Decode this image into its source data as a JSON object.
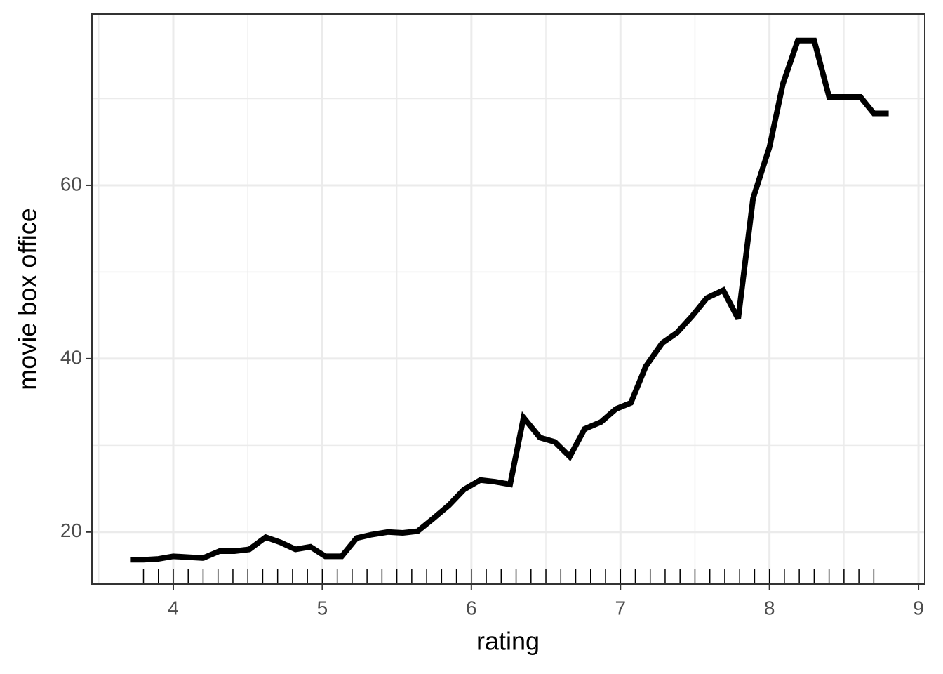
{
  "chart_data": {
    "type": "line",
    "x_label": "rating",
    "y_label": "movie box office",
    "x": [
      3.71,
      3.8,
      3.9,
      4.0,
      4.1,
      4.2,
      4.31,
      4.41,
      4.51,
      4.62,
      4.72,
      4.82,
      4.92,
      5.02,
      5.13,
      5.23,
      5.33,
      5.44,
      5.54,
      5.64,
      5.74,
      5.85,
      5.95,
      6.06,
      6.16,
      6.26,
      6.35,
      6.46,
      6.56,
      6.66,
      6.76,
      6.87,
      6.97,
      7.07,
      7.17,
      7.28,
      7.38,
      7.48,
      7.58,
      7.69,
      7.79,
      7.89,
      8.0,
      8.09,
      8.19,
      8.3,
      8.4,
      8.51,
      8.61,
      8.7,
      8.8
    ],
    "series": [
      {
        "color": "#000000",
        "values": [
          16.8,
          16.8,
          16.9,
          17.2,
          17.1,
          17.0,
          17.8,
          17.8,
          18.0,
          19.4,
          18.8,
          18.0,
          18.3,
          17.2,
          17.2,
          19.3,
          19.7,
          20.0,
          19.9,
          20.1,
          21.5,
          23.1,
          24.9,
          26.0,
          25.8,
          25.5,
          33.2,
          30.9,
          30.4,
          28.7,
          31.9,
          32.7,
          34.2,
          34.9,
          39.1,
          41.8,
          43.0,
          44.9,
          47.0,
          47.9,
          44.6,
          58.5,
          64.4,
          71.7,
          76.7,
          76.7,
          70.2,
          70.2,
          70.2,
          68.3,
          68.3
        ]
      }
    ],
    "rug": [
      3.8,
      3.9,
      4.0,
      4.1,
      4.2,
      4.3,
      4.4,
      4.5,
      4.6,
      4.7,
      4.8,
      4.9,
      5.0,
      5.1,
      5.2,
      5.3,
      5.4,
      5.5,
      5.6,
      5.7,
      5.8,
      5.9,
      6.0,
      6.1,
      6.2,
      6.3,
      6.4,
      6.5,
      6.6,
      6.7,
      6.8,
      6.9,
      7.0,
      7.1,
      7.2,
      7.3,
      7.4,
      7.5,
      7.6,
      7.7,
      7.8,
      7.9,
      8.0,
      8.1,
      8.2,
      8.3,
      8.4,
      8.5,
      8.6,
      8.7
    ],
    "xlim": [
      3.454,
      9.042
    ],
    "ylim": [
      13.99,
      79.76
    ],
    "xticks": [
      4,
      5,
      6,
      7,
      8,
      9
    ],
    "yticks": [
      20,
      40,
      60
    ],
    "grid": true
  }
}
